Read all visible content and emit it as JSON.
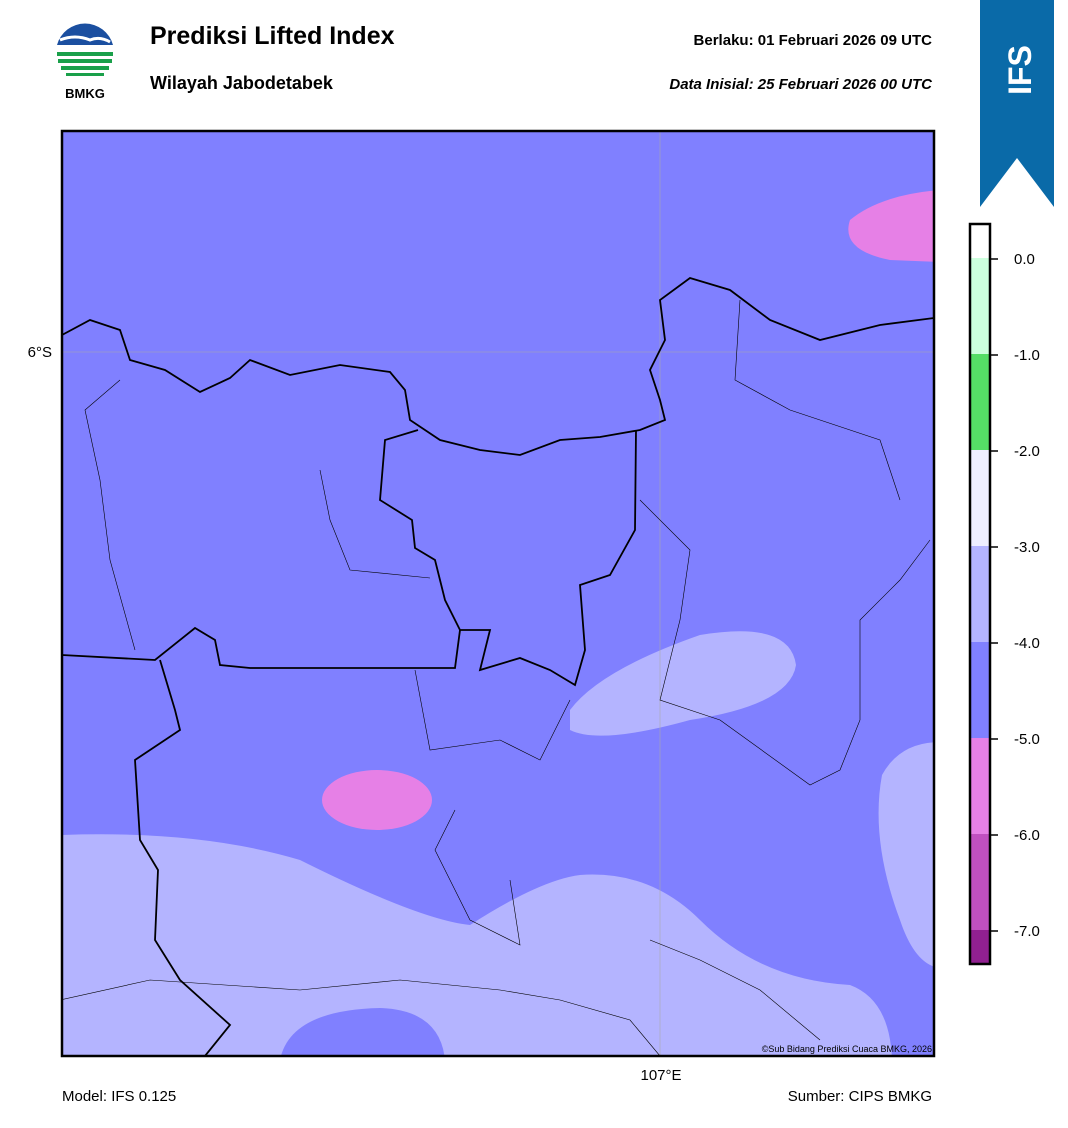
{
  "header": {
    "logo_text": "BMKG",
    "title": "Prediksi Lifted Index",
    "subtitle": "Wilayah Jabodetabek",
    "valid": "Berlaku:  01 Februari 2026 09 UTC",
    "init": "Data Inisial:  25 Februari 2026 00 UTC",
    "badge": "IFS"
  },
  "map": {
    "lat_label": "6°S",
    "lon_label": "107°E",
    "credit": "©Sub Bidang Prediksi Cuaca BMKG, 2026"
  },
  "colorbar": {
    "labels": [
      "0.0",
      "-1.0",
      "-2.0",
      "-3.0",
      "-4.0",
      "-5.0",
      "-6.0",
      "-7.0"
    ]
  },
  "footer": {
    "model": "Model: IFS 0.125",
    "source": "Sumber: CIPS BMKG"
  }
}
